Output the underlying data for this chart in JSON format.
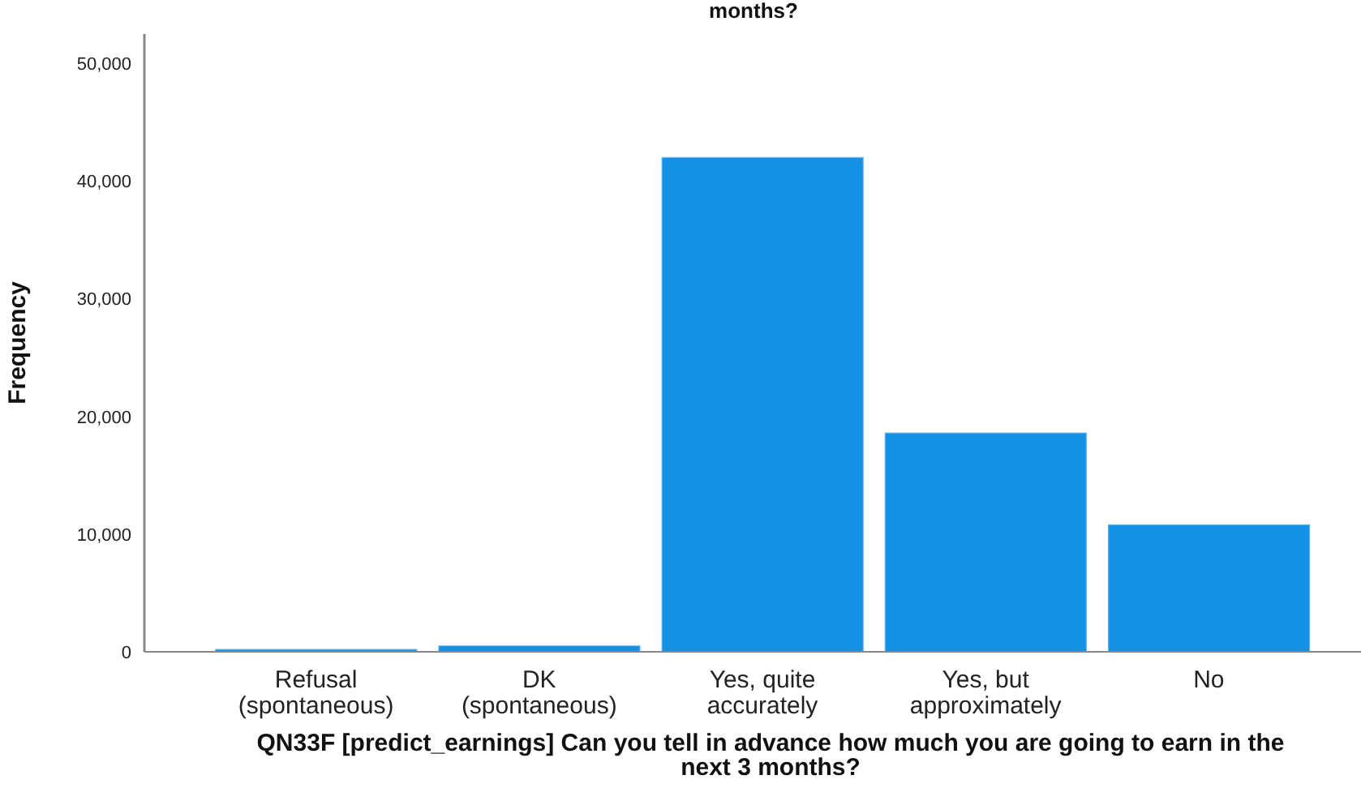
{
  "chart_data": {
    "type": "bar",
    "title": "months?",
    "xlabel": "QN33F [predict_earnings] Can you tell in advance how much you are going to earn in the next 3 months?",
    "ylabel": "Frequency",
    "categories": [
      "Refusal (spontaneous)",
      "DK (spontaneous)",
      "Yes, quite accurately",
      "Yes, but approximately",
      "No"
    ],
    "values": [
      200,
      500,
      42000,
      18600,
      10800
    ],
    "color": "#1490e4",
    "ylim": [
      0,
      52500
    ],
    "yticks": [
      0,
      {
        "value": 10000,
        "label": "10,000"
      },
      {
        "value": 20000,
        "label": "20,000"
      },
      {
        "value": 30000,
        "label": "30,000"
      },
      {
        "value": 40000,
        "label": "40,000"
      },
      {
        "value": 50000,
        "label": "50,000"
      }
    ],
    "grid": false
  }
}
